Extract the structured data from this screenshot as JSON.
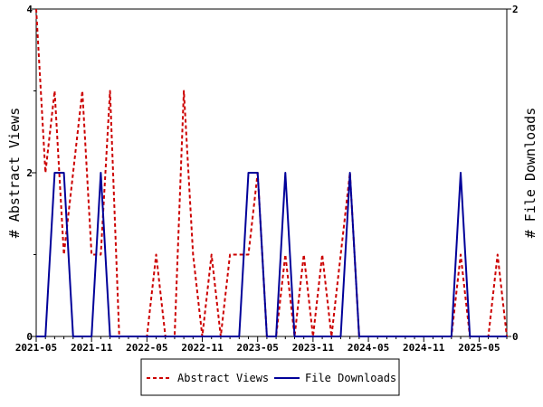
{
  "chart_data": {
    "type": "line",
    "x_tick_labels": [
      "2021-05",
      "2021-11",
      "2022-05",
      "2022-11",
      "2023-05",
      "2023-11",
      "2024-05",
      "2024-11",
      "2025-05"
    ],
    "ylabel_left": "# Abstract Views",
    "ylabel_right": "# File Downloads",
    "ylim_left": [
      0,
      4
    ],
    "ylim_right": [
      0,
      2
    ],
    "y_ticks_left": [
      "0",
      "2",
      "4"
    ],
    "y_ticks_right": [
      "0",
      "2"
    ],
    "x_months": [
      "2021-05",
      "2021-06",
      "2021-07",
      "2021-08",
      "2021-09",
      "2021-10",
      "2021-11",
      "2021-12",
      "2022-01",
      "2022-02",
      "2022-03",
      "2022-04",
      "2022-05",
      "2022-06",
      "2022-07",
      "2022-08",
      "2022-09",
      "2022-10",
      "2022-11",
      "2022-12",
      "2023-01",
      "2023-02",
      "2023-03",
      "2023-04",
      "2023-05",
      "2023-06",
      "2023-07",
      "2023-08",
      "2023-09",
      "2023-10",
      "2023-11",
      "2023-12",
      "2024-01",
      "2024-02",
      "2024-03",
      "2024-04",
      "2024-05",
      "2024-06",
      "2024-07",
      "2024-08",
      "2024-09",
      "2024-10",
      "2024-11",
      "2024-12",
      "2025-01",
      "2025-02",
      "2025-03",
      "2025-04",
      "2025-05",
      "2025-06",
      "2025-07",
      "2025-08"
    ],
    "series": [
      {
        "name": "Abstract Views",
        "axis": "left",
        "color": "#cc0000",
        "dash": "dashed",
        "values": [
          4,
          2,
          3,
          1,
          2,
          3,
          1,
          1,
          3,
          0,
          0,
          0,
          0,
          1,
          0,
          0,
          3,
          1,
          0,
          1,
          0,
          1,
          1,
          1,
          2,
          0,
          0,
          1,
          0,
          1,
          0,
          1,
          0,
          1,
          2,
          0,
          0,
          0,
          0,
          0,
          0,
          0,
          0,
          0,
          0,
          0,
          1,
          0,
          0,
          0,
          1,
          0
        ]
      },
      {
        "name": "File Downloads",
        "axis": "right",
        "color": "#000099",
        "dash": "solid",
        "values": [
          0,
          0,
          1,
          1,
          0,
          0,
          0,
          1,
          0,
          0,
          0,
          0,
          0,
          0,
          0,
          0,
          0,
          0,
          0,
          0,
          0,
          0,
          0,
          1,
          1,
          0,
          0,
          1,
          0,
          0,
          0,
          0,
          0,
          0,
          1,
          0,
          0,
          0,
          0,
          0,
          0,
          0,
          0,
          0,
          0,
          0,
          1,
          0,
          0,
          0,
          0,
          0
        ]
      }
    ],
    "legend_placement": "bottom-center",
    "grid": false
  }
}
